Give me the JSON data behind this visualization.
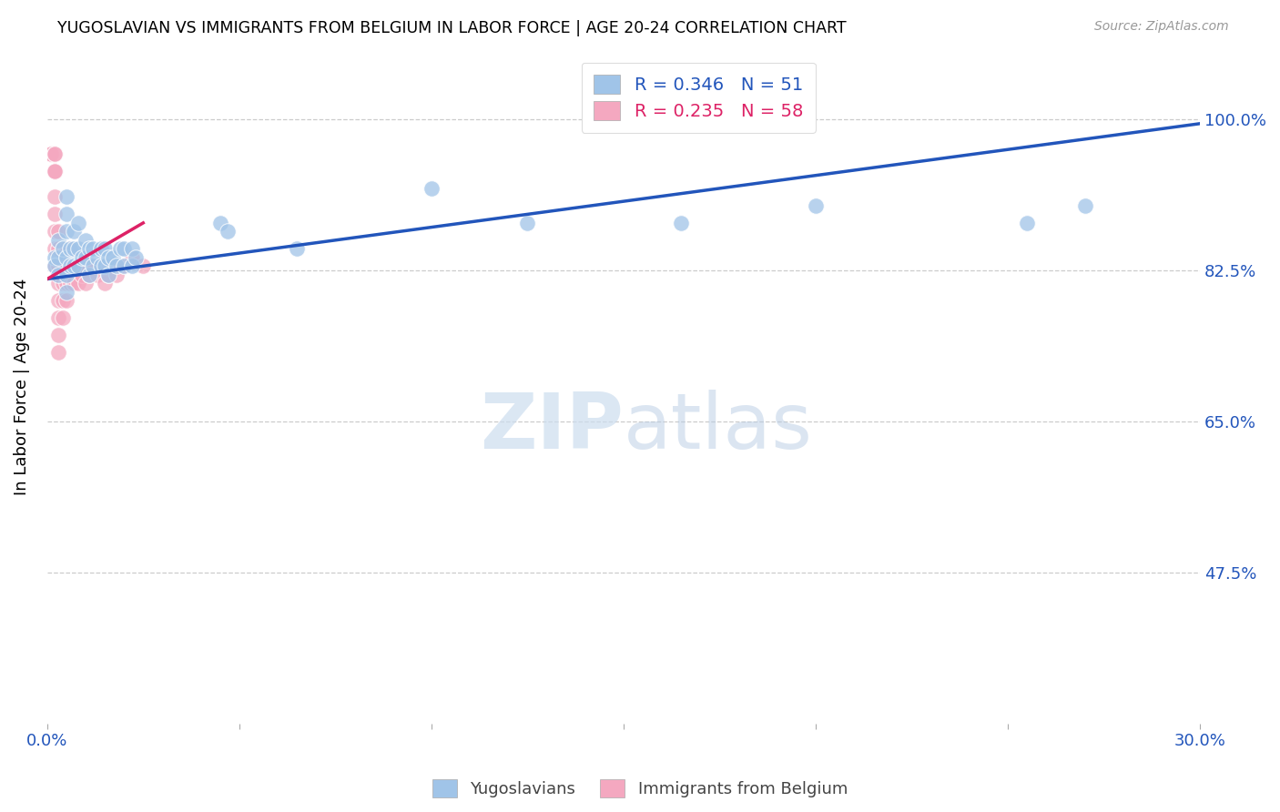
{
  "title": "YUGOSLAVIAN VS IMMIGRANTS FROM BELGIUM IN LABOR FORCE | AGE 20-24 CORRELATION CHART",
  "source": "Source: ZipAtlas.com",
  "ylabel": "In Labor Force | Age 20-24",
  "blue_R": 0.346,
  "blue_N": 51,
  "pink_R": 0.235,
  "pink_N": 58,
  "legend_label_blue": "Yugoslavians",
  "legend_label_pink": "Immigrants from Belgium",
  "blue_color": "#a0c4e8",
  "pink_color": "#f4a8c0",
  "blue_line_color": "#2255bb",
  "pink_line_color": "#dd2266",
  "grid_color": "#cccccc",
  "xmin": 0.0,
  "xmax": 0.3,
  "ymin": 0.3,
  "ymax": 1.08,
  "ytick_values": [
    1.0,
    0.825,
    0.65,
    0.475
  ],
  "ytick_labels": [
    "100.0%",
    "82.5%",
    "65.0%",
    "47.5%"
  ],
  "blue_scatter_x": [
    0.002,
    0.002,
    0.003,
    0.003,
    0.003,
    0.004,
    0.005,
    0.005,
    0.005,
    0.005,
    0.005,
    0.005,
    0.006,
    0.006,
    0.007,
    0.007,
    0.007,
    0.008,
    0.008,
    0.008,
    0.009,
    0.01,
    0.01,
    0.011,
    0.011,
    0.012,
    0.012,
    0.013,
    0.014,
    0.014,
    0.015,
    0.015,
    0.016,
    0.016,
    0.017,
    0.018,
    0.019,
    0.02,
    0.02,
    0.022,
    0.022,
    0.023,
    0.045,
    0.047,
    0.065,
    0.1,
    0.125,
    0.165,
    0.2,
    0.255,
    0.27
  ],
  "blue_scatter_y": [
    0.84,
    0.83,
    0.86,
    0.84,
    0.82,
    0.85,
    0.91,
    0.89,
    0.87,
    0.84,
    0.82,
    0.8,
    0.85,
    0.83,
    0.87,
    0.85,
    0.83,
    0.88,
    0.85,
    0.83,
    0.84,
    0.86,
    0.84,
    0.85,
    0.82,
    0.85,
    0.83,
    0.84,
    0.85,
    0.83,
    0.85,
    0.83,
    0.84,
    0.82,
    0.84,
    0.83,
    0.85,
    0.85,
    0.83,
    0.85,
    0.83,
    0.84,
    0.88,
    0.87,
    0.85,
    0.92,
    0.88,
    0.88,
    0.9,
    0.88,
    0.9
  ],
  "pink_scatter_x": [
    0.001,
    0.001,
    0.001,
    0.001,
    0.001,
    0.001,
    0.001,
    0.001,
    0.001,
    0.001,
    0.002,
    0.002,
    0.002,
    0.002,
    0.002,
    0.002,
    0.002,
    0.002,
    0.002,
    0.002,
    0.003,
    0.003,
    0.003,
    0.003,
    0.003,
    0.003,
    0.003,
    0.003,
    0.004,
    0.004,
    0.004,
    0.004,
    0.004,
    0.005,
    0.005,
    0.005,
    0.005,
    0.006,
    0.006,
    0.006,
    0.007,
    0.007,
    0.008,
    0.008,
    0.009,
    0.01,
    0.01,
    0.011,
    0.012,
    0.013,
    0.014,
    0.015,
    0.016,
    0.017,
    0.018,
    0.02,
    0.022,
    0.025
  ],
  "pink_scatter_y": [
    0.96,
    0.96,
    0.96,
    0.96,
    0.96,
    0.96,
    0.96,
    0.96,
    0.96,
    0.96,
    0.96,
    0.96,
    0.94,
    0.94,
    0.94,
    0.91,
    0.89,
    0.87,
    0.85,
    0.83,
    0.87,
    0.85,
    0.83,
    0.81,
    0.79,
    0.77,
    0.75,
    0.73,
    0.85,
    0.83,
    0.81,
    0.79,
    0.77,
    0.85,
    0.83,
    0.81,
    0.79,
    0.85,
    0.83,
    0.81,
    0.83,
    0.81,
    0.83,
    0.81,
    0.82,
    0.83,
    0.81,
    0.82,
    0.83,
    0.82,
    0.83,
    0.81,
    0.82,
    0.83,
    0.82,
    0.83,
    0.84,
    0.83
  ],
  "blue_line_x": [
    0.0,
    0.3
  ],
  "blue_line_y": [
    0.815,
    0.995
  ],
  "pink_line_x": [
    0.0,
    0.025
  ],
  "pink_line_y": [
    0.815,
    0.88
  ]
}
